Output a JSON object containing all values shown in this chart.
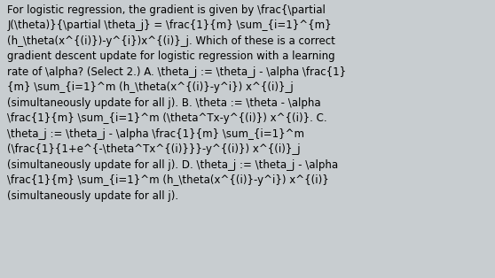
{
  "background_color": "#c8cdd0",
  "text_color": "#000000",
  "font_size": 8.5,
  "figwidth": 5.58,
  "figheight": 3.14,
  "dpi": 100,
  "line1": "For logistic regression, the gradient is given by \\frac{\\partial",
  "line2": "J(\\theta)}{\\partial \\theta_j} = \\frac{1}{m} \\sum_{i=1}^{m}",
  "line3": "(h_\\theta(x^{(i)})-y^{i})x^{(i)}_j. Which of these is a correct",
  "line4": "gradient descent update for logistic regression with a learning",
  "line5": "rate of \\alpha? (Select 2.) A. \\theta_j := \\theta_j - \\alpha \\frac{1}",
  "line6": "{m} \\sum_{i=1}^m (h_\\theta(x^{(i)}-y^i}) x^{(i)}_j",
  "line7": "(simultaneously update for all j). B. \\theta := \\theta - \\alpha",
  "line8": "\\frac{1}{m} \\sum_{i=1}^m (\\theta^Tx-y^{(i)}) x^{(i)}. C.",
  "line9": "\\theta_j := \\theta_j - \\alpha \\frac{1}{m} \\sum_{i=1}^m",
  "line10": "(\\frac{1}{1+e^{-\\theta^Tx^{(i)}}}-y^{(i)}) x^{(i)}_j",
  "line11": "(simultaneously update for all j). D. \\theta_j := \\theta_j - \\alpha",
  "line12": "\\frac{1}{m} \\sum_{i=1}^m (h_\\theta(x^{(i)}-y^i}) x^{(i)}",
  "line13": "(simultaneously update for all j)."
}
